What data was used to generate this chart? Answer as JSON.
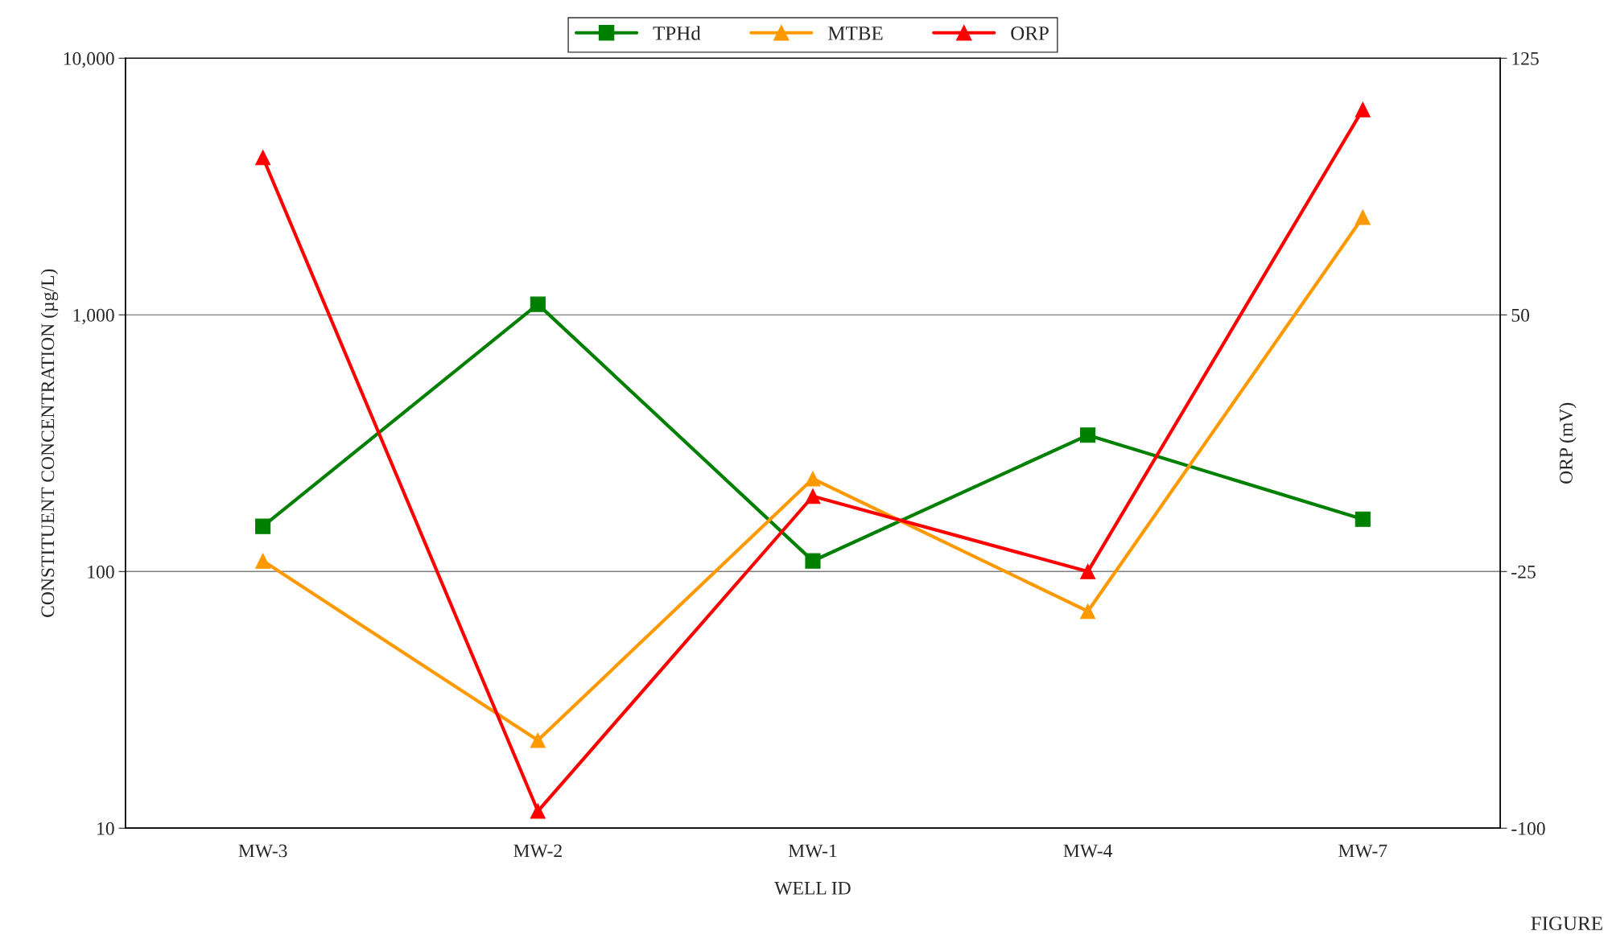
{
  "chart_data": {
    "type": "line",
    "xlabel": "WELL ID",
    "ylabel": "CONSTITUENT CONCENTRATION (µg/L)",
    "y2label": "ORP (mV)",
    "categories": [
      "MW-3",
      "MW-2",
      "MW-1",
      "MW-4",
      "MW-7"
    ],
    "series": [
      {
        "name": "TPHd",
        "color": "#008000",
        "marker": "square",
        "values": [
          150,
          1100,
          110,
          340,
          160
        ]
      },
      {
        "name": "MTBE",
        "color": "#ff9900",
        "marker": "triangle",
        "values": [
          110,
          22,
          230,
          70,
          2400
        ]
      },
      {
        "name": "ORP",
        "color": "#ff0000",
        "marker": "triangle",
        "axis": "y2",
        "values": [
          96,
          -95,
          -3,
          -25,
          110
        ]
      }
    ],
    "log": "y",
    "ylim": [
      10,
      10000
    ],
    "yticks": [
      10,
      100,
      {
        "value": 1000,
        "label": "1,000"
      },
      {
        "value": 10000,
        "label": "10,000"
      }
    ],
    "y2lim": [
      -100,
      125
    ],
    "y2ticks": [
      -100,
      -25,
      50,
      125
    ],
    "grid": "y",
    "legend": "top",
    "line_style": "solid",
    "annotations": [
      "FIGURE"
    ]
  }
}
